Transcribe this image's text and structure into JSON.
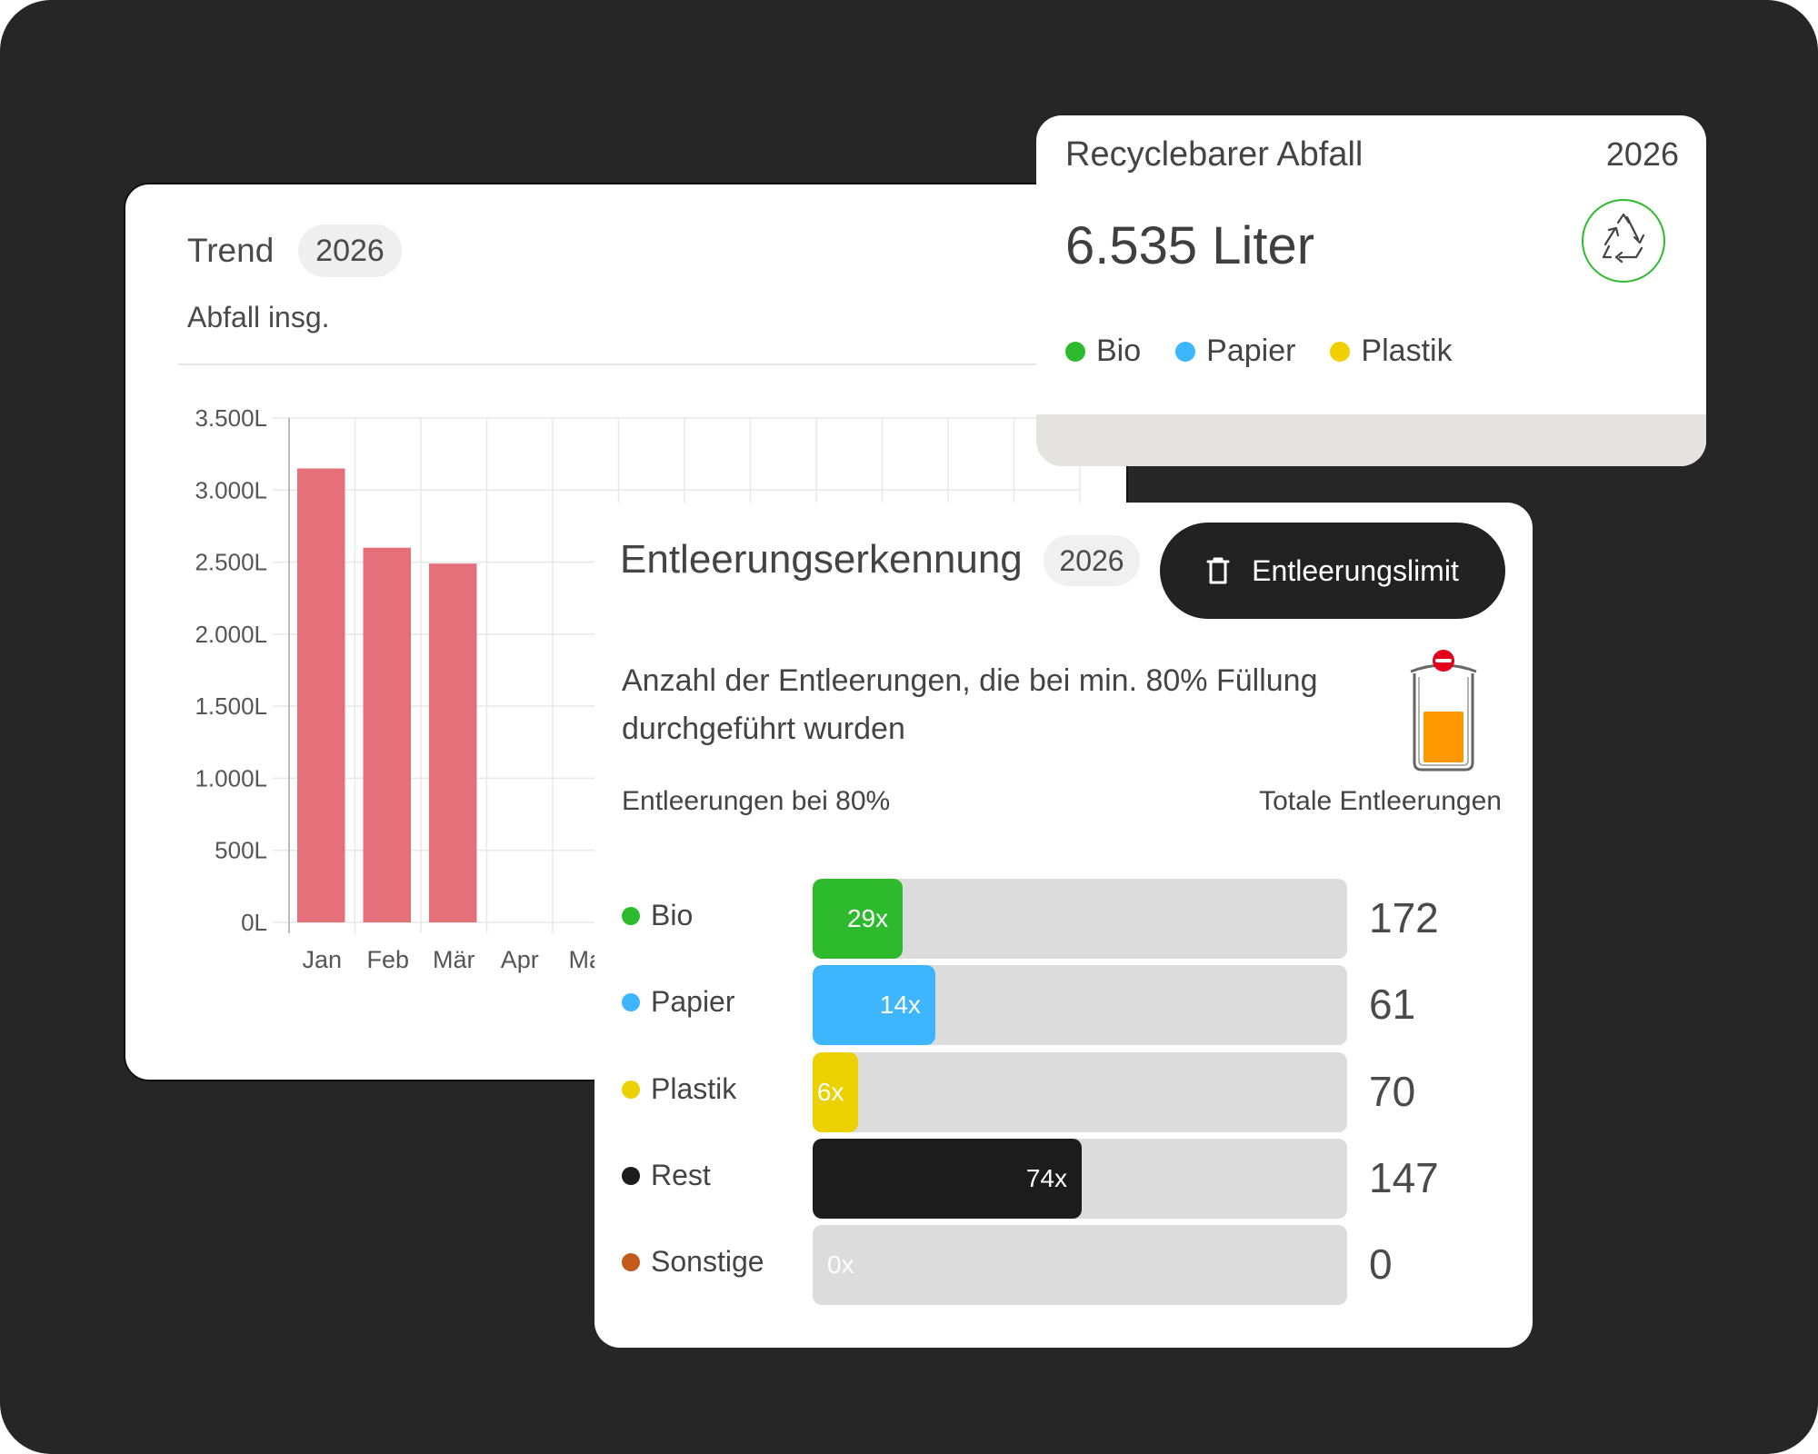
{
  "trend": {
    "title": "Trend",
    "year": "2026",
    "subtitle": "Abfall insg."
  },
  "chart_data": {
    "type": "bar",
    "title": "Abfall insg.",
    "categories": [
      "Jan",
      "Feb",
      "Mär",
      "Apr",
      "Ma"
    ],
    "values": [
      3150,
      2600,
      2490,
      0,
      0
    ],
    "y_ticks": [
      "0L",
      "500L",
      "1.000L",
      "1.500L",
      "2.000L",
      "2.500L",
      "3.000L",
      "3.500L"
    ],
    "ylim": [
      0,
      3500
    ],
    "grid": true,
    "bar_color": "#e5707a"
  },
  "recycle": {
    "title": "Recyclebarer Abfall",
    "year": "2026",
    "value": "6.535 Liter",
    "icon": "recycle-icon",
    "legend": [
      {
        "label": "Bio",
        "color": "#2dbb2d"
      },
      {
        "label": "Papier",
        "color": "#3eb6ff"
      },
      {
        "label": "Plastik",
        "color": "#f0d000"
      }
    ]
  },
  "emptying": {
    "title": "Entleerungserkennung",
    "year": "2026",
    "button_label": "Entleerungslimit",
    "button_icon": "trash-icon",
    "description": "Anzahl der Entleerungen, die bei min. 80% Füllung durchgeführt wurden",
    "bin_icon": "waste-bin-icon",
    "left_column": "Entleerungen bei 80%",
    "right_column": "Totale Entleerungen",
    "rows": [
      {
        "label": "Bio",
        "count": "29x",
        "count_value": 29,
        "total": "172",
        "total_value": 172,
        "color": "#2dbb2d"
      },
      {
        "label": "Papier",
        "count": "14x",
        "count_value": 14,
        "total": "61",
        "total_value": 61,
        "color": "#3eb6ff"
      },
      {
        "label": "Plastik",
        "count": "6x",
        "count_value": 6,
        "total": "70",
        "total_value": 70,
        "color": "#ebd100"
      },
      {
        "label": "Rest",
        "count": "74x",
        "count_value": 74,
        "total": "147",
        "total_value": 147,
        "color": "#1c1c1c"
      },
      {
        "label": "Sonstige",
        "count": "0x",
        "count_value": 0,
        "total": "0",
        "total_value": 0,
        "color": "#c45a1c"
      }
    ]
  }
}
